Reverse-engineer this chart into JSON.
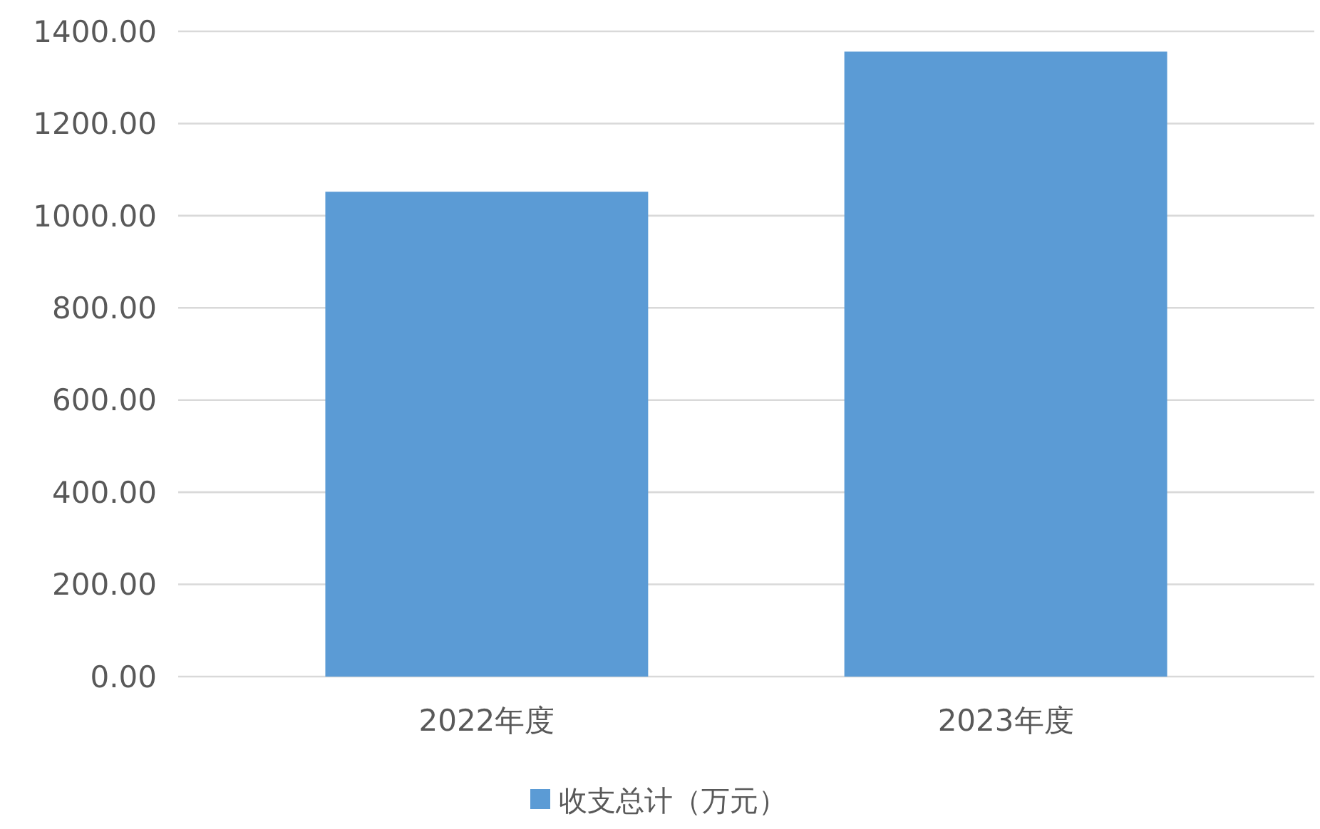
{
  "chart_data": {
    "type": "bar",
    "categories": [
      "2022年度",
      "2023年度"
    ],
    "series": [
      {
        "name": "收支总计（万元）",
        "color": "#5b9bd5",
        "values": [
          1052,
          1356
        ]
      }
    ],
    "ylim": [
      0,
      1400
    ],
    "yticks": [
      {
        "value": 0,
        "label": "0.00"
      },
      {
        "value": 200,
        "label": "200.00"
      },
      {
        "value": 400,
        "label": "400.00"
      },
      {
        "value": 600,
        "label": "600.00"
      },
      {
        "value": 800,
        "label": "800.00"
      },
      {
        "value": 1000,
        "label": "1000.00"
      },
      {
        "value": 1200,
        "label": "1200.00"
      },
      {
        "value": 1400,
        "label": "1400.00"
      }
    ],
    "grid": "y",
    "legend": "bottom"
  }
}
